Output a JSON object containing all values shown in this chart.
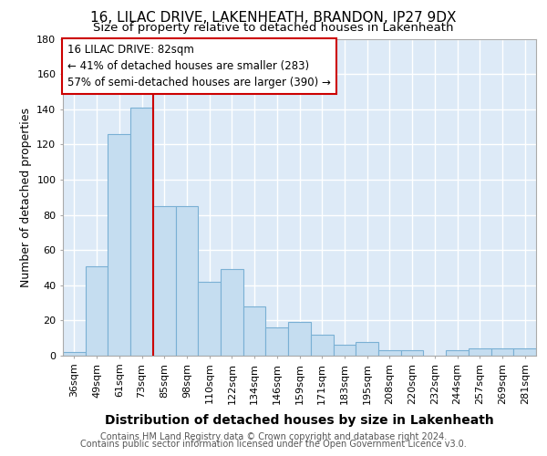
{
  "title1": "16, LILAC DRIVE, LAKENHEATH, BRANDON, IP27 9DX",
  "title2": "Size of property relative to detached houses in Lakenheath",
  "xlabel": "Distribution of detached houses by size in Lakenheath",
  "ylabel": "Number of detached properties",
  "categories": [
    "36sqm",
    "49sqm",
    "61sqm",
    "73sqm",
    "85sqm",
    "98sqm",
    "110sqm",
    "122sqm",
    "134sqm",
    "146sqm",
    "159sqm",
    "171sqm",
    "183sqm",
    "195sqm",
    "208sqm",
    "220sqm",
    "232sqm",
    "244sqm",
    "257sqm",
    "269sqm",
    "281sqm"
  ],
  "values": [
    2,
    51,
    126,
    141,
    85,
    85,
    42,
    49,
    28,
    16,
    19,
    12,
    6,
    8,
    3,
    3,
    0,
    3,
    4,
    4,
    4
  ],
  "bar_color": "#c5ddf0",
  "bar_edge_color": "#7ab0d4",
  "vline_index": 3.5,
  "vline_color": "#cc0000",
  "annotation_line1": "16 LILAC DRIVE: 82sqm",
  "annotation_line2": "← 41% of detached houses are smaller (283)",
  "annotation_line3": "57% of semi-detached houses are larger (390) →",
  "annotation_box_bg": "#ffffff",
  "annotation_box_edge": "#cc0000",
  "ylim_max": 180,
  "yticks": [
    0,
    20,
    40,
    60,
    80,
    100,
    120,
    140,
    160,
    180
  ],
  "footer1": "Contains HM Land Registry data © Crown copyright and database right 2024.",
  "footer2": "Contains public sector information licensed under the Open Government Licence v3.0.",
  "bg_color": "#ddeaf7",
  "grid_color": "#ffffff",
  "title1_fontsize": 11,
  "title2_fontsize": 9.5,
  "ylabel_fontsize": 9,
  "xlabel_fontsize": 10,
  "tick_fontsize": 8,
  "annot_fontsize": 8.5,
  "footer_fontsize": 7
}
